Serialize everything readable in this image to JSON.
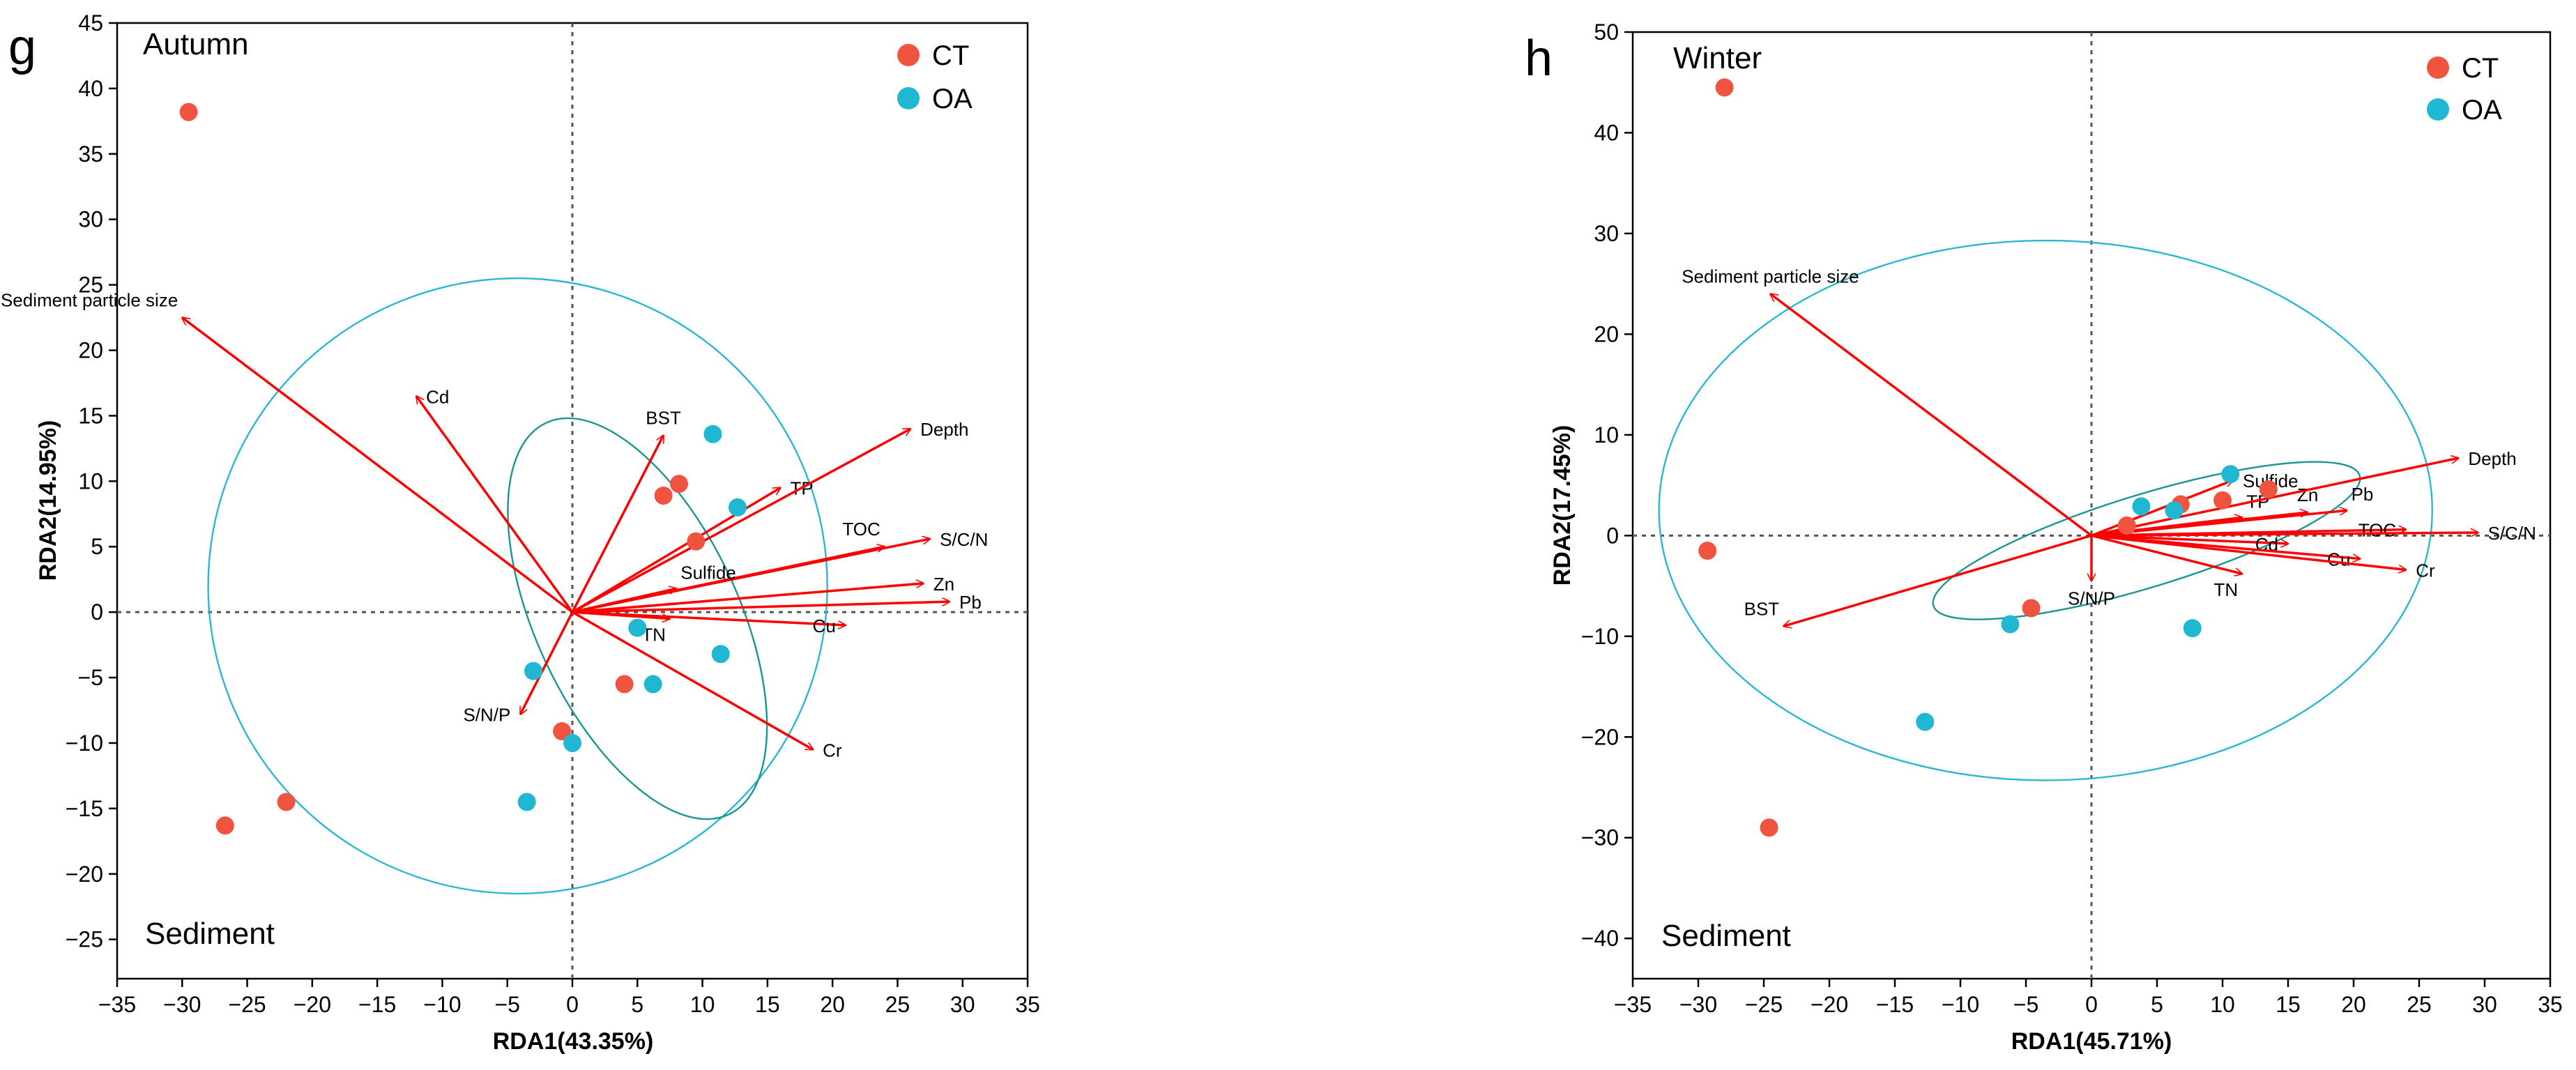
{
  "figure": {
    "panel_count": 2
  },
  "colors": {
    "ct": "#f0533f",
    "oa": "#1fb7d1",
    "arrow": "#ff0000",
    "ellipse_outer": "#2ab7d0",
    "ellipse_inner": "#1a9593",
    "zero_line": "#555555",
    "axis": "#000000"
  },
  "legend": {
    "labels": [
      "CT",
      "OA"
    ]
  },
  "chart_data": [
    {
      "type": "scatter",
      "panel_letter": "g",
      "season": "Autumn",
      "subset": "Sediment",
      "xlabel": "RDA1(43.35%)",
      "ylabel": "RDA2(14.95%)",
      "xlim": [
        -35,
        35
      ],
      "ylim": [
        -28,
        45
      ],
      "xticks": [
        -35,
        -30,
        -25,
        -20,
        -15,
        -10,
        -5,
        0,
        5,
        10,
        15,
        20,
        25,
        30,
        35
      ],
      "yticks": [
        -25,
        -20,
        -15,
        -10,
        -5,
        0,
        5,
        10,
        15,
        20,
        25,
        30,
        35,
        40,
        45
      ],
      "series": [
        {
          "name": "CT",
          "points": [
            [
              -29.5,
              38.2
            ],
            [
              -26.7,
              -16.3
            ],
            [
              -22,
              -14.5
            ],
            [
              7,
              8.9
            ],
            [
              8.2,
              9.8
            ],
            [
              9.5,
              5.4
            ],
            [
              -0.8,
              -9.1
            ],
            [
              4,
              -5.5
            ]
          ]
        },
        {
          "name": "OA",
          "points": [
            [
              10.8,
              13.6
            ],
            [
              12.7,
              8
            ],
            [
              5,
              -1.2
            ],
            [
              11.4,
              -3.2
            ],
            [
              -3,
              -4.5
            ],
            [
              6.2,
              -5.5
            ],
            [
              0,
              -10
            ],
            [
              -3.5,
              -14.5
            ]
          ]
        }
      ],
      "arrows": [
        {
          "label": "Sediment particle size",
          "x": -30,
          "y": 22.5,
          "label_pos": "above-left"
        },
        {
          "label": "Cd",
          "x": -12,
          "y": 16.5,
          "label_pos": "right"
        },
        {
          "label": "BST",
          "x": 7,
          "y": 13.5,
          "label_pos": "above"
        },
        {
          "label": "TP",
          "x": 16,
          "y": 9.5,
          "label_pos": "right"
        },
        {
          "label": "Depth",
          "x": 26,
          "y": 14,
          "label_pos": "right"
        },
        {
          "label": "TOC",
          "x": 24,
          "y": 5,
          "label_pos": "above-left"
        },
        {
          "label": "S/C/N",
          "x": 27.5,
          "y": 5.6,
          "label_pos": "right"
        },
        {
          "label": "Zn",
          "x": 27,
          "y": 2.2,
          "label_pos": "right"
        },
        {
          "label": "Pb",
          "x": 29,
          "y": 0.8,
          "label_pos": "right"
        },
        {
          "label": "Cu",
          "x": 21,
          "y": -1,
          "label_pos": "left"
        },
        {
          "label": "Sulfide",
          "x": 8,
          "y": 1.8,
          "label_pos": "above-right"
        },
        {
          "label": "TN",
          "x": 7.5,
          "y": -0.5,
          "label_pos": "below-left"
        },
        {
          "label": "Cr",
          "x": 18.5,
          "y": -10.5,
          "label_pos": "right"
        },
        {
          "label": "S/N/P",
          "x": -4,
          "y": -7.8,
          "label_pos": "left"
        }
      ],
      "ellipses": [
        {
          "name": "outer",
          "cx": -4.2,
          "cy": 2,
          "rx": 23.8,
          "ry": 23.5,
          "rotation": 0
        },
        {
          "name": "inner",
          "cx": 5,
          "cy": -0.5,
          "rx": 7.8,
          "ry": 16.5,
          "rotation": 25
        }
      ]
    },
    {
      "type": "scatter",
      "panel_letter": "h",
      "season": "Winter",
      "subset": "Sediment",
      "xlabel": "RDA1(45.71%)",
      "ylabel": "RDA2(17.45%)",
      "xlim": [
        -35,
        35
      ],
      "ylim": [
        -44,
        50
      ],
      "xticks": [
        -35,
        -30,
        -25,
        -20,
        -15,
        -10,
        -5,
        0,
        5,
        10,
        15,
        20,
        25,
        30,
        35
      ],
      "yticks": [
        -40,
        -30,
        -20,
        -10,
        0,
        10,
        20,
        30,
        40,
        50
      ],
      "series": [
        {
          "name": "CT",
          "points": [
            [
              -28,
              44.5
            ],
            [
              -29.3,
              -1.5
            ],
            [
              -24.6,
              -29
            ],
            [
              -4.6,
              -7.2
            ],
            [
              2.7,
              1
            ],
            [
              6.8,
              3.1
            ],
            [
              10,
              3.5
            ],
            [
              13.5,
              4.6
            ]
          ]
        },
        {
          "name": "OA",
          "points": [
            [
              10.6,
              6.1
            ],
            [
              3.8,
              2.9
            ],
            [
              6.3,
              2.5
            ],
            [
              7.7,
              -9.2
            ],
            [
              -6.2,
              -8.8
            ],
            [
              -12.7,
              -18.5
            ]
          ]
        }
      ],
      "arrows": [
        {
          "label": "Sediment particle size",
          "x": -24.5,
          "y": 24,
          "label_pos": "above"
        },
        {
          "label": "BST",
          "x": -23.5,
          "y": -9,
          "label_pos": "above-left"
        },
        {
          "label": "Sulfide",
          "x": 10.8,
          "y": 5.5,
          "label_pos": "right"
        },
        {
          "label": "TP",
          "x": 11.5,
          "y": 1.8,
          "label_pos": "above-right"
        },
        {
          "label": "Zn",
          "x": 16.5,
          "y": 2.3,
          "label_pos": "above"
        },
        {
          "label": "Pb",
          "x": 19.5,
          "y": 2.5,
          "label_pos": "above-right"
        },
        {
          "label": "Depth",
          "x": 28,
          "y": 7.7,
          "label_pos": "right"
        },
        {
          "label": "TOC",
          "x": 24,
          "y": 0.6,
          "label_pos": "left"
        },
        {
          "label": "S/C/N",
          "x": 29.5,
          "y": 0.3,
          "label_pos": "right"
        },
        {
          "label": "Cd",
          "x": 15,
          "y": -0.8,
          "label_pos": "left"
        },
        {
          "label": "Cu",
          "x": 20.5,
          "y": -2.3,
          "label_pos": "left"
        },
        {
          "label": "Cr",
          "x": 24,
          "y": -3.4,
          "label_pos": "right"
        },
        {
          "label": "TN",
          "x": 11.5,
          "y": -3.8,
          "label_pos": "below-left"
        },
        {
          "label": "S/N/P",
          "x": 0,
          "y": -4.5,
          "label_pos": "below"
        }
      ],
      "ellipses": [
        {
          "name": "outer",
          "cx": -3.5,
          "cy": 2.5,
          "rx": 29.5,
          "ry": 26.8,
          "rotation": 0
        },
        {
          "name": "inner",
          "cx": 4.2,
          "cy": -0.5,
          "rx": 17,
          "ry": 4.6,
          "rotation": 17
        }
      ]
    }
  ]
}
